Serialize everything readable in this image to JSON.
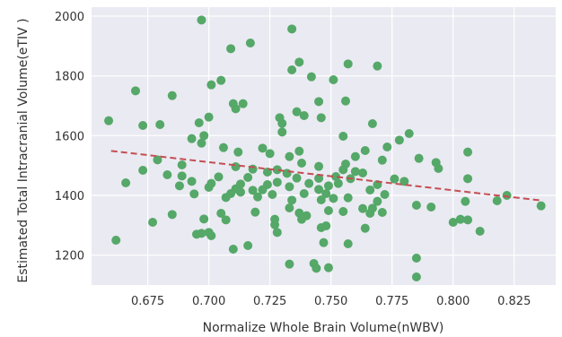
{
  "chart_data": {
    "type": "scatter",
    "title": "",
    "xlabel": "Normalize Whole Brain Volume(nWBV)",
    "ylabel": "Estimated Total Intracranial Volume(eTIV )",
    "xlim": [
      0.652,
      0.842
    ],
    "ylim": [
      1100,
      2030
    ],
    "x_ticks": [
      0.675,
      0.7,
      0.725,
      0.75,
      0.775,
      0.8,
      0.825
    ],
    "x_tick_labels": [
      "0.675",
      "0.700",
      "0.725",
      "0.750",
      "0.775",
      "0.800",
      "0.825"
    ],
    "y_ticks": [
      1200,
      1400,
      1600,
      1800,
      2000
    ],
    "y_tick_labels": [
      "1200",
      "1400",
      "1600",
      "1800",
      "2000"
    ],
    "grid": true,
    "background": "#eaeaf2",
    "point_color": "#55a868",
    "trend_color": "#c44e52",
    "trend_line": {
      "x": [
        0.66,
        0.836
      ],
      "y": [
        1549,
        1383
      ]
    },
    "points": [
      {
        "x": 0.697,
        "y": 1987
      },
      {
        "x": 0.734,
        "y": 1957
      },
      {
        "x": 0.717,
        "y": 1910
      },
      {
        "x": 0.709,
        "y": 1891
      },
      {
        "x": 0.737,
        "y": 1846
      },
      {
        "x": 0.757,
        "y": 1840
      },
      {
        "x": 0.734,
        "y": 1820
      },
      {
        "x": 0.769,
        "y": 1833
      },
      {
        "x": 0.742,
        "y": 1797
      },
      {
        "x": 0.751,
        "y": 1787
      },
      {
        "x": 0.705,
        "y": 1785
      },
      {
        "x": 0.701,
        "y": 1770
      },
      {
        "x": 0.67,
        "y": 1750
      },
      {
        "x": 0.685,
        "y": 1734
      },
      {
        "x": 0.71,
        "y": 1707
      },
      {
        "x": 0.714,
        "y": 1707
      },
      {
        "x": 0.711,
        "y": 1690
      },
      {
        "x": 0.745,
        "y": 1714
      },
      {
        "x": 0.756,
        "y": 1716
      },
      {
        "x": 0.736,
        "y": 1680
      },
      {
        "x": 0.739,
        "y": 1667
      },
      {
        "x": 0.729,
        "y": 1660
      },
      {
        "x": 0.746,
        "y": 1660
      },
      {
        "x": 0.73,
        "y": 1641
      },
      {
        "x": 0.7,
        "y": 1662
      },
      {
        "x": 0.696,
        "y": 1643
      },
      {
        "x": 0.659,
        "y": 1650
      },
      {
        "x": 0.673,
        "y": 1634
      },
      {
        "x": 0.68,
        "y": 1637
      },
      {
        "x": 0.767,
        "y": 1640
      },
      {
        "x": 0.73,
        "y": 1612
      },
      {
        "x": 0.698,
        "y": 1600
      },
      {
        "x": 0.693,
        "y": 1590
      },
      {
        "x": 0.697,
        "y": 1575
      },
      {
        "x": 0.755,
        "y": 1598
      },
      {
        "x": 0.782,
        "y": 1607
      },
      {
        "x": 0.778,
        "y": 1585
      },
      {
        "x": 0.773,
        "y": 1562
      },
      {
        "x": 0.706,
        "y": 1560
      },
      {
        "x": 0.722,
        "y": 1558
      },
      {
        "x": 0.737,
        "y": 1548
      },
      {
        "x": 0.764,
        "y": 1550
      },
      {
        "x": 0.712,
        "y": 1545
      },
      {
        "x": 0.725,
        "y": 1540
      },
      {
        "x": 0.733,
        "y": 1530
      },
      {
        "x": 0.76,
        "y": 1530
      },
      {
        "x": 0.786,
        "y": 1524
      },
      {
        "x": 0.771,
        "y": 1518
      },
      {
        "x": 0.679,
        "y": 1519
      },
      {
        "x": 0.793,
        "y": 1510
      },
      {
        "x": 0.806,
        "y": 1545
      },
      {
        "x": 0.738,
        "y": 1508
      },
      {
        "x": 0.756,
        "y": 1505
      },
      {
        "x": 0.745,
        "y": 1497
      },
      {
        "x": 0.689,
        "y": 1502
      },
      {
        "x": 0.711,
        "y": 1496
      },
      {
        "x": 0.718,
        "y": 1488
      },
      {
        "x": 0.728,
        "y": 1486
      },
      {
        "x": 0.755,
        "y": 1486
      },
      {
        "x": 0.673,
        "y": 1484
      },
      {
        "x": 0.724,
        "y": 1478
      },
      {
        "x": 0.732,
        "y": 1474
      },
      {
        "x": 0.76,
        "y": 1480
      },
      {
        "x": 0.763,
        "y": 1475
      },
      {
        "x": 0.794,
        "y": 1490
      },
      {
        "x": 0.683,
        "y": 1469
      },
      {
        "x": 0.689,
        "y": 1465
      },
      {
        "x": 0.704,
        "y": 1462
      },
      {
        "x": 0.716,
        "y": 1460
      },
      {
        "x": 0.736,
        "y": 1458
      },
      {
        "x": 0.745,
        "y": 1457
      },
      {
        "x": 0.752,
        "y": 1463
      },
      {
        "x": 0.758,
        "y": 1456
      },
      {
        "x": 0.776,
        "y": 1455
      },
      {
        "x": 0.78,
        "y": 1447
      },
      {
        "x": 0.806,
        "y": 1456
      },
      {
        "x": 0.666,
        "y": 1442
      },
      {
        "x": 0.693,
        "y": 1447
      },
      {
        "x": 0.701,
        "y": 1440
      },
      {
        "x": 0.713,
        "y": 1438
      },
      {
        "x": 0.724,
        "y": 1436
      },
      {
        "x": 0.728,
        "y": 1444
      },
      {
        "x": 0.741,
        "y": 1440
      },
      {
        "x": 0.749,
        "y": 1432
      },
      {
        "x": 0.753,
        "y": 1440
      },
      {
        "x": 0.769,
        "y": 1436
      },
      {
        "x": 0.688,
        "y": 1432
      },
      {
        "x": 0.7,
        "y": 1427
      },
      {
        "x": 0.711,
        "y": 1422
      },
      {
        "x": 0.718,
        "y": 1417
      },
      {
        "x": 0.722,
        "y": 1419
      },
      {
        "x": 0.733,
        "y": 1429
      },
      {
        "x": 0.745,
        "y": 1420
      },
      {
        "x": 0.766,
        "y": 1418
      },
      {
        "x": 0.694,
        "y": 1405
      },
      {
        "x": 0.709,
        "y": 1406
      },
      {
        "x": 0.713,
        "y": 1411
      },
      {
        "x": 0.726,
        "y": 1403
      },
      {
        "x": 0.739,
        "y": 1406
      },
      {
        "x": 0.748,
        "y": 1406
      },
      {
        "x": 0.751,
        "y": 1390
      },
      {
        "x": 0.757,
        "y": 1392
      },
      {
        "x": 0.772,
        "y": 1403
      },
      {
        "x": 0.707,
        "y": 1393
      },
      {
        "x": 0.72,
        "y": 1395
      },
      {
        "x": 0.734,
        "y": 1384
      },
      {
        "x": 0.746,
        "y": 1385
      },
      {
        "x": 0.769,
        "y": 1380
      },
      {
        "x": 0.805,
        "y": 1380
      },
      {
        "x": 0.818,
        "y": 1382
      },
      {
        "x": 0.822,
        "y": 1400
      },
      {
        "x": 0.836,
        "y": 1365
      },
      {
        "x": 0.785,
        "y": 1367
      },
      {
        "x": 0.791,
        "y": 1361
      },
      {
        "x": 0.763,
        "y": 1356
      },
      {
        "x": 0.767,
        "y": 1357
      },
      {
        "x": 0.755,
        "y": 1346
      },
      {
        "x": 0.749,
        "y": 1349
      },
      {
        "x": 0.737,
        "y": 1341
      },
      {
        "x": 0.733,
        "y": 1358
      },
      {
        "x": 0.719,
        "y": 1344
      },
      {
        "x": 0.705,
        "y": 1340
      },
      {
        "x": 0.685,
        "y": 1336
      },
      {
        "x": 0.698,
        "y": 1321
      },
      {
        "x": 0.707,
        "y": 1318
      },
      {
        "x": 0.727,
        "y": 1320
      },
      {
        "x": 0.738,
        "y": 1320
      },
      {
        "x": 0.74,
        "y": 1332
      },
      {
        "x": 0.766,
        "y": 1340
      },
      {
        "x": 0.771,
        "y": 1343
      },
      {
        "x": 0.8,
        "y": 1310
      },
      {
        "x": 0.803,
        "y": 1320
      },
      {
        "x": 0.806,
        "y": 1318
      },
      {
        "x": 0.677,
        "y": 1310
      },
      {
        "x": 0.727,
        "y": 1302
      },
      {
        "x": 0.746,
        "y": 1292
      },
      {
        "x": 0.748,
        "y": 1298
      },
      {
        "x": 0.811,
        "y": 1280
      },
      {
        "x": 0.764,
        "y": 1290
      },
      {
        "x": 0.697,
        "y": 1273
      },
      {
        "x": 0.695,
        "y": 1270
      },
      {
        "x": 0.7,
        "y": 1276
      },
      {
        "x": 0.701,
        "y": 1265
      },
      {
        "x": 0.728,
        "y": 1276
      },
      {
        "x": 0.662,
        "y": 1250
      },
      {
        "x": 0.747,
        "y": 1242
      },
      {
        "x": 0.757,
        "y": 1238
      },
      {
        "x": 0.716,
        "y": 1232
      },
      {
        "x": 0.71,
        "y": 1220
      },
      {
        "x": 0.733,
        "y": 1170
      },
      {
        "x": 0.743,
        "y": 1172
      },
      {
        "x": 0.744,
        "y": 1156
      },
      {
        "x": 0.749,
        "y": 1158
      },
      {
        "x": 0.785,
        "y": 1190
      },
      {
        "x": 0.785,
        "y": 1127
      }
    ]
  }
}
